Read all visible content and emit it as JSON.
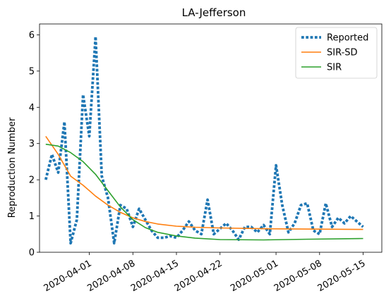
{
  "chart_data": {
    "type": "line",
    "title": "LA-Jefferson",
    "xlabel": "",
    "ylabel": "Reproduction Number",
    "x_axis": {
      "type": "date",
      "range": [
        "2020-03-24",
        "2020-05-18"
      ],
      "ticks": [
        "2020-04-01",
        "2020-04-08",
        "2020-04-15",
        "2020-04-22",
        "2020-05-01",
        "2020-05-08",
        "2020-05-15"
      ]
    },
    "y_axis": {
      "range": [
        0,
        6.3
      ],
      "ticks": [
        0,
        1,
        2,
        3,
        4,
        5,
        6
      ]
    },
    "grid": false,
    "legend": {
      "placement": "top-right"
    },
    "series": [
      {
        "name": "Reported",
        "style": "dotted",
        "color": "#1f77b4",
        "points": [
          [
            "2020-03-25",
            2.0
          ],
          [
            "2020-03-26",
            2.7
          ],
          [
            "2020-03-27",
            2.2
          ],
          [
            "2020-03-28",
            3.6
          ],
          [
            "2020-03-29",
            0.25
          ],
          [
            "2020-03-30",
            0.9
          ],
          [
            "2020-03-31",
            4.35
          ],
          [
            "2020-04-01",
            3.2
          ],
          [
            "2020-04-02",
            5.95
          ],
          [
            "2020-04-03",
            2.1
          ],
          [
            "2020-04-04",
            1.5
          ],
          [
            "2020-04-05",
            0.25
          ],
          [
            "2020-04-06",
            1.3
          ],
          [
            "2020-04-07",
            1.2
          ],
          [
            "2020-04-08",
            0.7
          ],
          [
            "2020-04-09",
            1.2
          ],
          [
            "2020-04-10",
            0.9
          ],
          [
            "2020-04-11",
            0.6
          ],
          [
            "2020-04-12",
            0.4
          ],
          [
            "2020-04-13",
            0.4
          ],
          [
            "2020-04-14",
            0.45
          ],
          [
            "2020-04-15",
            0.4
          ],
          [
            "2020-04-16",
            0.6
          ],
          [
            "2020-04-17",
            0.85
          ],
          [
            "2020-04-18",
            0.6
          ],
          [
            "2020-04-19",
            0.5
          ],
          [
            "2020-04-20",
            1.45
          ],
          [
            "2020-04-21",
            0.5
          ],
          [
            "2020-04-22",
            0.65
          ],
          [
            "2020-04-23",
            0.8
          ],
          [
            "2020-04-24",
            0.6
          ],
          [
            "2020-04-25",
            0.35
          ],
          [
            "2020-04-26",
            0.7
          ],
          [
            "2020-04-27",
            0.7
          ],
          [
            "2020-04-28",
            0.55
          ],
          [
            "2020-04-29",
            0.75
          ],
          [
            "2020-04-30",
            0.5
          ],
          [
            "2020-05-01",
            2.4
          ],
          [
            "2020-05-02",
            1.3
          ],
          [
            "2020-05-03",
            0.55
          ],
          [
            "2020-05-04",
            0.8
          ],
          [
            "2020-05-05",
            1.3
          ],
          [
            "2020-05-06",
            1.35
          ],
          [
            "2020-05-07",
            0.6
          ],
          [
            "2020-05-08",
            0.5
          ],
          [
            "2020-05-09",
            1.35
          ],
          [
            "2020-05-10",
            0.7
          ],
          [
            "2020-05-11",
            0.95
          ],
          [
            "2020-05-12",
            0.8
          ],
          [
            "2020-05-13",
            1.0
          ],
          [
            "2020-05-14",
            0.85
          ],
          [
            "2020-05-15",
            0.7
          ]
        ]
      },
      {
        "name": "SIR-SD",
        "style": "solid",
        "color": "#ff7f0e",
        "points": [
          [
            "2020-03-25",
            3.2
          ],
          [
            "2020-03-27",
            2.7
          ],
          [
            "2020-03-29",
            2.1
          ],
          [
            "2020-03-31",
            1.85
          ],
          [
            "2020-04-02",
            1.55
          ],
          [
            "2020-04-04",
            1.3
          ],
          [
            "2020-04-06",
            1.1
          ],
          [
            "2020-04-08",
            0.95
          ],
          [
            "2020-04-10",
            0.85
          ],
          [
            "2020-04-12",
            0.78
          ],
          [
            "2020-04-15",
            0.72
          ],
          [
            "2020-04-18",
            0.69
          ],
          [
            "2020-04-22",
            0.67
          ],
          [
            "2020-04-29",
            0.65
          ],
          [
            "2020-05-06",
            0.64
          ],
          [
            "2020-05-15",
            0.63
          ]
        ]
      },
      {
        "name": "SIR",
        "style": "solid",
        "color": "#2ca02c",
        "points": [
          [
            "2020-03-25",
            2.98
          ],
          [
            "2020-03-27",
            2.93
          ],
          [
            "2020-03-29",
            2.75
          ],
          [
            "2020-03-31",
            2.5
          ],
          [
            "2020-04-02",
            2.15
          ],
          [
            "2020-04-04",
            1.7
          ],
          [
            "2020-04-06",
            1.25
          ],
          [
            "2020-04-08",
            0.9
          ],
          [
            "2020-04-10",
            0.68
          ],
          [
            "2020-04-12",
            0.55
          ],
          [
            "2020-04-15",
            0.45
          ],
          [
            "2020-04-18",
            0.39
          ],
          [
            "2020-04-22",
            0.35
          ],
          [
            "2020-04-29",
            0.34
          ],
          [
            "2020-05-06",
            0.36
          ],
          [
            "2020-05-15",
            0.38
          ]
        ]
      }
    ]
  }
}
